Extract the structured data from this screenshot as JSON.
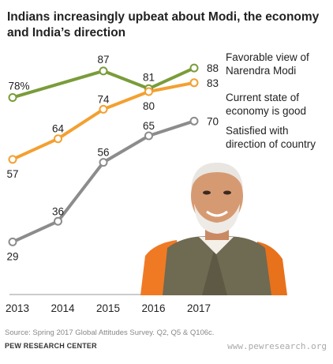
{
  "title": "Indians increasingly upbeat about Modi, the economy and India’s direction",
  "chart_data": {
    "type": "line",
    "title": "Indians increasingly upbeat about Modi, the economy and India’s direction",
    "x": [
      "2013",
      "2014",
      "2015",
      "2016",
      "2017"
    ],
    "ylim": [
      20,
      95
    ],
    "grid": false,
    "legend": "right, inline labels",
    "series": [
      {
        "name": "Favorable view of Narendra Modi",
        "color": "#7a9c3a",
        "values": [
          78,
          null,
          87,
          81,
          88
        ],
        "labels": [
          "78%",
          "",
          "87",
          "81",
          "88"
        ]
      },
      {
        "name": "Current state of economy is good",
        "color": "#f3a031",
        "values": [
          57,
          64,
          74,
          80,
          83
        ],
        "labels": [
          "57",
          "64",
          "74",
          "80",
          "83"
        ]
      },
      {
        "name": "Satisfied with direction of country",
        "color": "#8c8c8c",
        "values": [
          29,
          36,
          56,
          65,
          70
        ],
        "labels": [
          "29",
          "36",
          "56",
          "65",
          "70"
        ]
      }
    ]
  },
  "legend": {
    "modi": [
      "Favorable view of",
      "Narendra Modi"
    ],
    "economy": [
      "Current state of",
      "economy is good"
    ],
    "direction": [
      "Satisfied with",
      "direction of country"
    ]
  },
  "source": "Source: Spring 2017 Global Attitudes Survey. Q2, Q5 & Q106c.",
  "org": "PEW RESEARCH CENTER",
  "url": "www.pewresearch.org"
}
